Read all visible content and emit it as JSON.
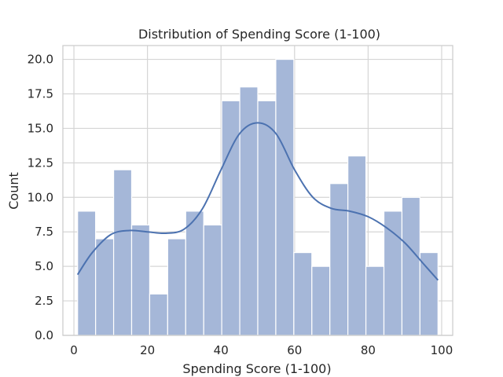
{
  "chart_data": {
    "type": "bar",
    "title": "Distribution of Spending Score (1-100)",
    "xlabel": "Spending Score (1-100)",
    "ylabel": "Count",
    "xlim": [
      -3,
      103
    ],
    "ylim": [
      0,
      21
    ],
    "grid": true,
    "legend": "none",
    "bin_edges": [
      1,
      5.9,
      10.8,
      15.7,
      20.6,
      25.5,
      30.4,
      35.3,
      40.2,
      45.1,
      50.0,
      54.9,
      59.8,
      64.7,
      69.6,
      74.5,
      79.4,
      84.3,
      89.2,
      94.1,
      99
    ],
    "counts": [
      9,
      7,
      12,
      8,
      3,
      7,
      9,
      8,
      17,
      18,
      17,
      20,
      6,
      5,
      11,
      13,
      5,
      9,
      10,
      6
    ],
    "kde": {
      "x": [
        1,
        5,
        10,
        15,
        20,
        25,
        30,
        35,
        40,
        45,
        50,
        55,
        60,
        65,
        70,
        75,
        80,
        85,
        90,
        95,
        99
      ],
      "y": [
        4.4,
        6.0,
        7.3,
        7.6,
        7.5,
        7.4,
        7.7,
        9.2,
        12.0,
        14.6,
        15.4,
        14.6,
        12.0,
        10.0,
        9.2,
        9.0,
        8.6,
        7.8,
        6.7,
        5.2,
        4.0
      ]
    },
    "x_ticks": [
      0,
      20,
      40,
      60,
      80,
      100
    ],
    "x_tick_labels": [
      "0",
      "20",
      "40",
      "60",
      "80",
      "100"
    ],
    "y_ticks": [
      0,
      2.5,
      5,
      7.5,
      10,
      12.5,
      15,
      17.5,
      20
    ],
    "y_tick_labels": [
      "0.0",
      "2.5",
      "5.0",
      "7.5",
      "10.0",
      "12.5",
      "15.0",
      "17.5",
      "20.0"
    ],
    "bar_color": "#a5b7d8",
    "line_color": "#4c72b0",
    "grid_color": "#d5d5d5",
    "spine_color": "#cccccc"
  }
}
